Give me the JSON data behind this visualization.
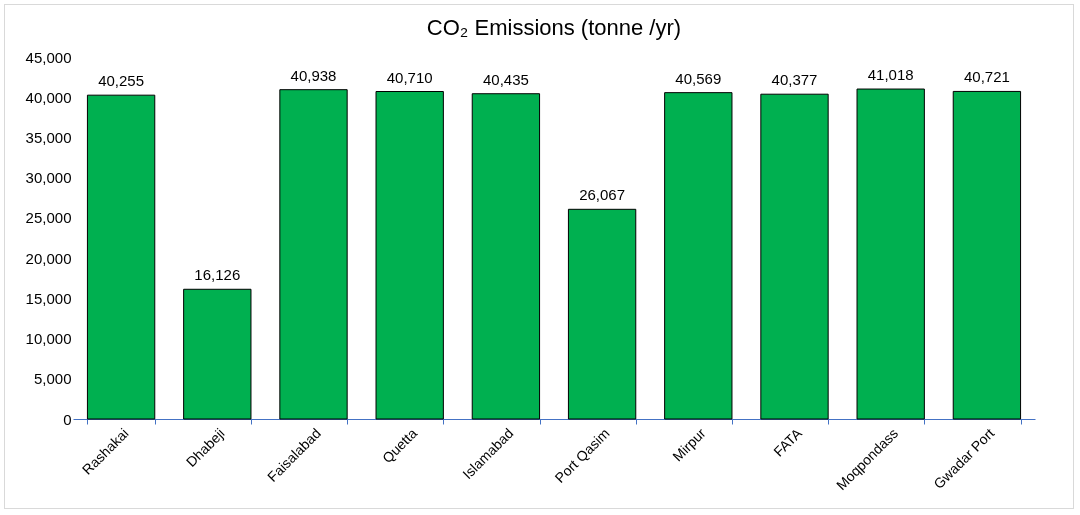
{
  "chart_data": {
    "type": "bar",
    "title": "CO₂ Emissions (tonne /yr)",
    "categories": [
      "Rashakai",
      "Dhabeji",
      "Faisalabad",
      "Quetta",
      "Islamabad",
      "Port Qasim",
      "Mirpur",
      "FATA",
      "Moqpondass",
      "Gwadar Port"
    ],
    "values": [
      40255,
      16126,
      40938,
      40710,
      40435,
      26067,
      40569,
      40377,
      41018,
      40721
    ],
    "value_labels": [
      "40,255",
      "16,126",
      "40,938",
      "40,710",
      "40,435",
      "26,067",
      "40,569",
      "40,377",
      "41,018",
      "40,721"
    ],
    "color": "#00b050",
    "ylim": [
      0,
      45000
    ],
    "yticks": [
      0,
      {
        "value": 5000,
        "label": "5,000"
      },
      {
        "value": 10000,
        "label": "10,000"
      },
      {
        "value": 15000,
        "label": "15,000"
      },
      {
        "value": 20000,
        "label": "20,000"
      },
      {
        "value": 25000,
        "label": "25,000"
      },
      {
        "value": 30000,
        "label": "30,000"
      },
      {
        "value": 35000,
        "label": "35,000"
      },
      {
        "value": 40000,
        "label": "40,000"
      },
      {
        "value": 45000,
        "label": "45,000"
      }
    ],
    "grid": false
  }
}
